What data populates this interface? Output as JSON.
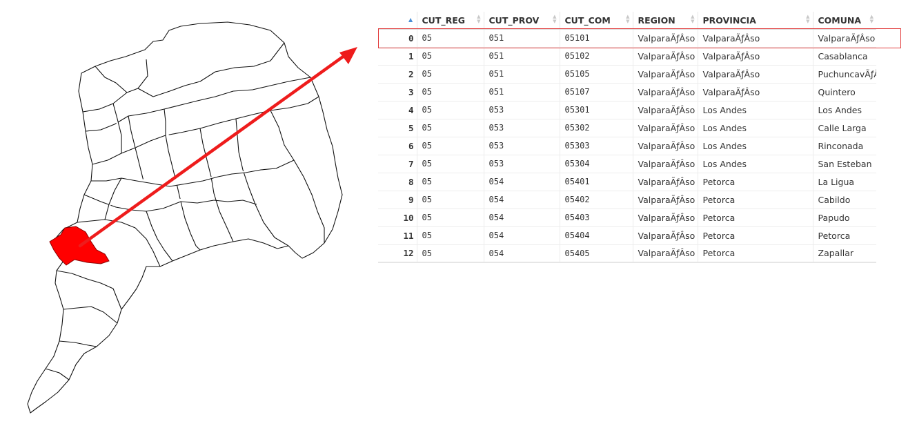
{
  "map": {
    "highlight_color": "#ff0000",
    "outline_color": "#111111",
    "arrow_color": "#ee1c1c"
  },
  "table": {
    "columns": [
      {
        "key": "index",
        "label": "",
        "sort": "asc"
      },
      {
        "key": "CUT_REG",
        "label": "CUT_REG"
      },
      {
        "key": "CUT_PROV",
        "label": "CUT_PROV"
      },
      {
        "key": "CUT_COM",
        "label": "CUT_COM"
      },
      {
        "key": "REGION",
        "label": "REGION"
      },
      {
        "key": "PROVINCIA",
        "label": "PROVINCIA"
      },
      {
        "key": "COMUNA",
        "label": "COMUNA"
      }
    ],
    "highlighted_row": 0,
    "rows": [
      [
        "0",
        "05",
        "051",
        "05101",
        "ValparaÃƒÂso",
        "ValparaÃƒÂso",
        "ValparaÃƒÂso"
      ],
      [
        "1",
        "05",
        "051",
        "05102",
        "ValparaÃƒÂso",
        "ValparaÃƒÂso",
        "Casablanca"
      ],
      [
        "2",
        "05",
        "051",
        "05105",
        "ValparaÃƒÂso",
        "ValparaÃƒÂso",
        "PuchuncavÃƒÂ"
      ],
      [
        "3",
        "05",
        "051",
        "05107",
        "ValparaÃƒÂso",
        "ValparaÃƒÂso",
        "Quintero"
      ],
      [
        "4",
        "05",
        "053",
        "05301",
        "ValparaÃƒÂso",
        "Los Andes",
        "Los Andes"
      ],
      [
        "5",
        "05",
        "053",
        "05302",
        "ValparaÃƒÂso",
        "Los Andes",
        "Calle Larga"
      ],
      [
        "6",
        "05",
        "053",
        "05303",
        "ValparaÃƒÂso",
        "Los Andes",
        "Rinconada"
      ],
      [
        "7",
        "05",
        "053",
        "05304",
        "ValparaÃƒÂso",
        "Los Andes",
        "San Esteban"
      ],
      [
        "8",
        "05",
        "054",
        "05401",
        "ValparaÃƒÂso",
        "Petorca",
        "La Ligua"
      ],
      [
        "9",
        "05",
        "054",
        "05402",
        "ValparaÃƒÂso",
        "Petorca",
        "Cabildo"
      ],
      [
        "10",
        "05",
        "054",
        "05403",
        "ValparaÃƒÂso",
        "Petorca",
        "Papudo"
      ],
      [
        "11",
        "05",
        "054",
        "05404",
        "ValparaÃƒÂso",
        "Petorca",
        "Petorca"
      ],
      [
        "12",
        "05",
        "054",
        "05405",
        "ValparaÃƒÂso",
        "Petorca",
        "Zapallar"
      ]
    ]
  }
}
